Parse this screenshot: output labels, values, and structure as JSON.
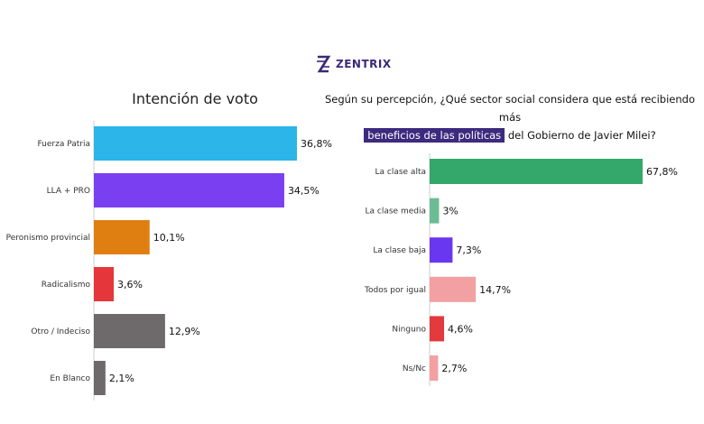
{
  "brand": {
    "name": "ZENTRIX",
    "icon": "zentrix-logo-icon",
    "color": "#3a2a78"
  },
  "chart_data": [
    {
      "type": "bar",
      "orientation": "horizontal",
      "title": "Intención de voto",
      "categories": [
        "Fuerza Patria",
        "LLA + PRO",
        "Peronismo provincial",
        "Radicalismo",
        "Otro / Indeciso",
        "En Blanco"
      ],
      "values": [
        36.8,
        34.5,
        10.1,
        3.6,
        12.9,
        2.1
      ],
      "value_labels": [
        "36,8%",
        "34,5%",
        "10,1%",
        "3,6%",
        "12,9%",
        "2,1%"
      ],
      "colors": [
        "#2cb5e8",
        "#7b3ff2",
        "#df7f12",
        "#e5373b",
        "#6e6a6b",
        "#6e6a6b"
      ],
      "xlim": [
        0,
        36.8
      ]
    },
    {
      "type": "bar",
      "orientation": "horizontal",
      "title_parts": {
        "before": "Según su percepción, ¿Qué sector social considera que está recibiendo más",
        "highlight": "beneficios de las políticas",
        "after": "del Gobierno de Javier Milei?"
      },
      "categories": [
        "La clase alta",
        "La clase media",
        "La clase baja",
        "Todos por igual",
        "Ninguno",
        "Ns/Nc"
      ],
      "values": [
        67.8,
        3,
        7.3,
        14.7,
        4.6,
        2.7
      ],
      "value_labels": [
        "67,8%",
        "3%",
        "7,3%",
        "14,7%",
        "4,6%",
        "2,7%"
      ],
      "colors": [
        "#33a86a",
        "#6dbb95",
        "#6a37f0",
        "#f2a0a2",
        "#e23a3d",
        "#f2a0a2"
      ],
      "xlim": [
        0,
        67.8
      ]
    }
  ]
}
